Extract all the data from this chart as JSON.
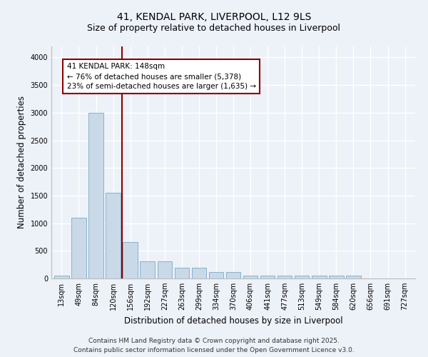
{
  "title1": "41, KENDAL PARK, LIVERPOOL, L12 9LS",
  "title2": "Size of property relative to detached houses in Liverpool",
  "xlabel": "Distribution of detached houses by size in Liverpool",
  "ylabel": "Number of detached properties",
  "categories": [
    "13sqm",
    "49sqm",
    "84sqm",
    "120sqm",
    "156sqm",
    "192sqm",
    "227sqm",
    "263sqm",
    "299sqm",
    "334sqm",
    "370sqm",
    "406sqm",
    "441sqm",
    "477sqm",
    "513sqm",
    "549sqm",
    "584sqm",
    "620sqm",
    "656sqm",
    "691sqm",
    "727sqm"
  ],
  "values": [
    50,
    1100,
    3000,
    1550,
    660,
    310,
    310,
    190,
    190,
    110,
    110,
    50,
    50,
    50,
    50,
    50,
    50,
    50,
    0,
    0,
    0
  ],
  "bar_color": "#c9d9e8",
  "bar_edge_color": "#7aaac8",
  "vline_x": 3.5,
  "vline_color": "#8b0000",
  "annotation_text": "41 KENDAL PARK: 148sqm\n← 76% of detached houses are smaller (5,378)\n23% of semi-detached houses are larger (1,635) →",
  "annotation_box_color": "#8b0000",
  "annotation_fill": "white",
  "ylim": [
    0,
    4200
  ],
  "yticks": [
    0,
    500,
    1000,
    1500,
    2000,
    2500,
    3000,
    3500,
    4000
  ],
  "footer1": "Contains HM Land Registry data © Crown copyright and database right 2025.",
  "footer2": "Contains public sector information licensed under the Open Government Licence v3.0.",
  "bg_color": "#edf1f8",
  "plot_bg_color": "#edf1f8",
  "grid_color": "#ffffff",
  "title_fontsize": 10,
  "subtitle_fontsize": 9,
  "axis_label_fontsize": 8.5,
  "tick_fontsize": 7,
  "footer_fontsize": 6.5,
  "annotation_fontsize": 7.5
}
